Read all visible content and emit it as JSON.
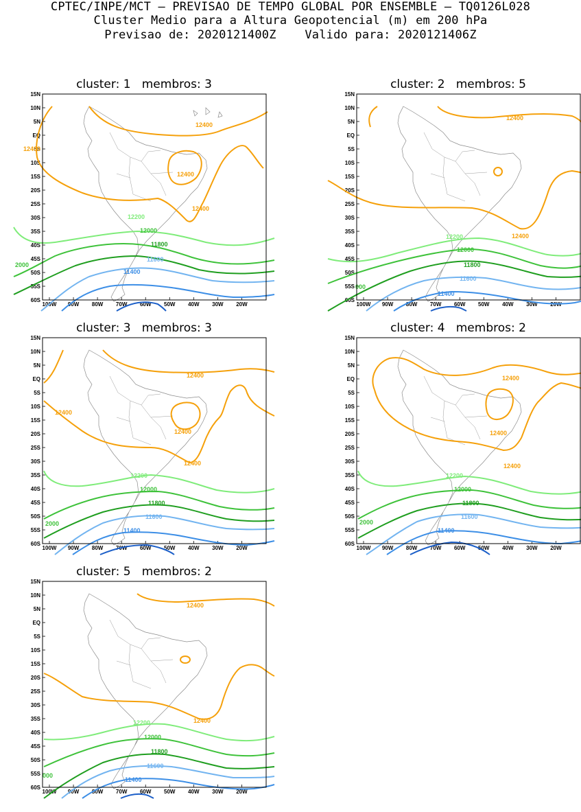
{
  "header": {
    "line1": "CPTEC/INPE/MCT – PREVISAO DE TEMPO GLOBAL POR ENSEMBLE – TQ0126L028",
    "line2": "Cluster Medio para a Altura Geopotencial (m) em 200 hPa",
    "line3": "Previsao de: 2020121400Z    Valido para: 2020121406Z"
  },
  "lat_labels": [
    "15N",
    "10N",
    "5N",
    "EQ",
    "5S",
    "10S",
    "15S",
    "20S",
    "25S",
    "30S",
    "35S",
    "40S",
    "45S",
    "50S",
    "55S",
    "60S"
  ],
  "lon_labels": [
    "100W",
    "90W",
    "80W",
    "70W",
    "60W",
    "50W",
    "40W",
    "30W",
    "20W"
  ],
  "colors": {
    "c12400": "#f5a00a",
    "c12200": "#7fec7a",
    "c12000": "#3ec23a",
    "c11800": "#1f9e1f",
    "c11600": "#72b4f0",
    "c11400": "#3c8ee6",
    "c11200": "#1c5fc8",
    "coast": "#8a8a8a"
  },
  "panels": [
    {
      "title": "cluster: 1   membros: 3",
      "labels": {
        "a": "12400",
        "b": "12400",
        "c": "12400",
        "d": "12400",
        "e": "12200",
        "f": "12000",
        "g": "11800",
        "h": "11600",
        "i": "11400",
        "j": "2000"
      }
    },
    {
      "title": "cluster: 2   membros: 5",
      "labels": {
        "a": "12400",
        "b": "12400",
        "c": "12200",
        "d": "12000",
        "e": "11800",
        "f": "11600",
        "g": "11400",
        "h": "000"
      }
    },
    {
      "title": "cluster: 3   membros: 3",
      "labels": {
        "a": "12400",
        "b": "12400",
        "c": "12400",
        "d": "12400",
        "e": "12200",
        "f": "12000",
        "g": "11800",
        "h": "11600",
        "i": "11400",
        "j": "2000"
      }
    },
    {
      "title": "cluster: 4   membros: 2",
      "labels": {
        "a": "12400",
        "b": "12400",
        "c": "12400",
        "d": "12200",
        "e": "12000",
        "f": "11800",
        "g": "11600",
        "h": "11400",
        "i": "2000"
      }
    },
    {
      "title": "cluster: 5   membros: 2",
      "labels": {
        "a": "12400",
        "b": "12400",
        "c": "12200",
        "d": "12000",
        "e": "11800",
        "f": "11600",
        "g": "11400",
        "h": "000"
      }
    }
  ]
}
